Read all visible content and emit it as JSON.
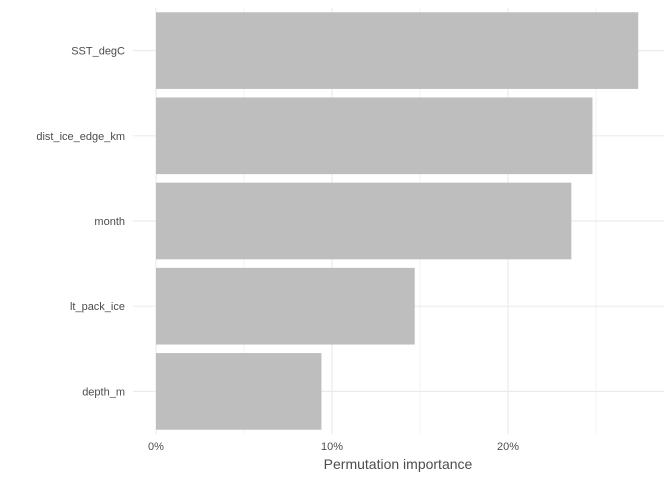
{
  "chart_data": {
    "type": "bar",
    "orientation": "horizontal",
    "categories": [
      "SST_degC",
      "dist_ice_edge_km",
      "month",
      "lt_pack_ice",
      "depth_m"
    ],
    "values": [
      27.4,
      24.8,
      23.6,
      14.7,
      9.4
    ],
    "title": "",
    "xlabel": "Permutation importance",
    "ylabel": "",
    "xlim": [
      0,
      28.9
    ],
    "x_ticks": [
      0,
      10,
      20
    ],
    "x_tick_labels": [
      "0%",
      "10%",
      "20%"
    ],
    "x_minor_ticks": [
      5,
      15,
      25
    ],
    "grid": true,
    "bar_color": "#bebebe",
    "grid_color": "#ebebeb"
  }
}
